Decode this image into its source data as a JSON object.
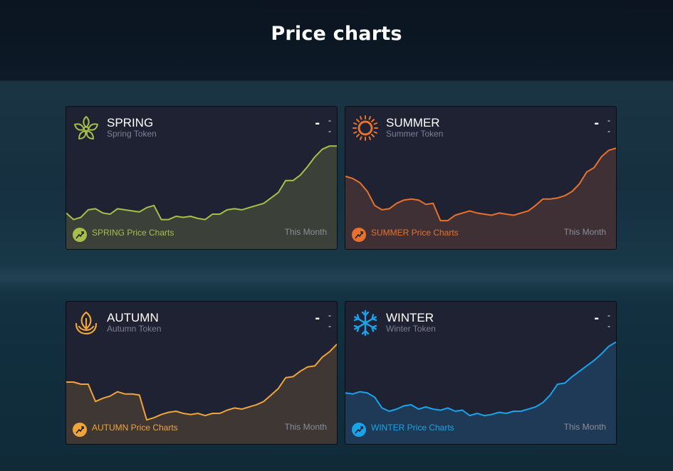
{
  "page": {
    "title": "Price charts"
  },
  "cards": [
    {
      "id": "spring",
      "name": "SPRING",
      "subtitle": "Spring Token",
      "price_main": "-",
      "price_a": "-",
      "price_b": "-",
      "footer_label": "SPRING Price Charts",
      "period": "This Month",
      "color": "#a7bf4a",
      "fill": "#3b4038",
      "icon": "flower-icon",
      "series": [
        0.28,
        0.22,
        0.24,
        0.31,
        0.32,
        0.28,
        0.27,
        0.32,
        0.31,
        0.3,
        0.29,
        0.33,
        0.35,
        0.22,
        0.22,
        0.25,
        0.24,
        0.25,
        0.23,
        0.22,
        0.27,
        0.27,
        0.31,
        0.32,
        0.31,
        0.33,
        0.35,
        0.37,
        0.42,
        0.47,
        0.58,
        0.58,
        0.63,
        0.71,
        0.8,
        0.87,
        0.9,
        0.9
      ]
    },
    {
      "id": "summer",
      "name": "SUMMER",
      "subtitle": "Summer Token",
      "price_main": "-",
      "price_a": "-",
      "price_b": "-",
      "footer_label": "SUMMER Price Charts",
      "period": "This Month",
      "color": "#e8722c",
      "fill": "#3e3034",
      "icon": "sun-icon",
      "series": [
        0.62,
        0.6,
        0.56,
        0.48,
        0.35,
        0.31,
        0.32,
        0.37,
        0.4,
        0.41,
        0.4,
        0.36,
        0.37,
        0.21,
        0.21,
        0.26,
        0.28,
        0.3,
        0.28,
        0.27,
        0.26,
        0.28,
        0.27,
        0.26,
        0.28,
        0.3,
        0.35,
        0.41,
        0.41,
        0.42,
        0.44,
        0.48,
        0.55,
        0.66,
        0.7,
        0.8,
        0.86,
        0.88
      ]
    },
    {
      "id": "autumn",
      "name": "AUTUMN",
      "subtitle": "Autumn Token",
      "price_main": "-",
      "price_a": "-",
      "price_b": "-",
      "footer_label": "AUTUMN Price Charts",
      "period": "This Month",
      "color": "#f0a43a",
      "fill": "#3f3734",
      "icon": "leaf-icon",
      "series": [
        0.52,
        0.52,
        0.5,
        0.5,
        0.34,
        0.37,
        0.39,
        0.43,
        0.41,
        0.41,
        0.4,
        0.17,
        0.19,
        0.22,
        0.24,
        0.25,
        0.23,
        0.22,
        0.23,
        0.21,
        0.23,
        0.23,
        0.26,
        0.28,
        0.27,
        0.29,
        0.31,
        0.34,
        0.4,
        0.46,
        0.56,
        0.57,
        0.62,
        0.66,
        0.67,
        0.75,
        0.8,
        0.87
      ]
    },
    {
      "id": "winter",
      "name": "WINTER",
      "subtitle": "Winter Token",
      "price_main": "-",
      "price_a": "-",
      "price_b": "-",
      "footer_label": "WINTER Price Charts",
      "period": "This Month",
      "color": "#1aa3ea",
      "fill": "#1f3a56",
      "icon": "snowflake-icon",
      "series": [
        0.42,
        0.41,
        0.43,
        0.42,
        0.38,
        0.28,
        0.25,
        0.27,
        0.3,
        0.31,
        0.27,
        0.29,
        0.27,
        0.26,
        0.28,
        0.25,
        0.26,
        0.21,
        0.23,
        0.21,
        0.22,
        0.24,
        0.23,
        0.25,
        0.25,
        0.27,
        0.29,
        0.33,
        0.4,
        0.5,
        0.51,
        0.57,
        0.62,
        0.67,
        0.72,
        0.78,
        0.85,
        0.89
      ]
    }
  ]
}
